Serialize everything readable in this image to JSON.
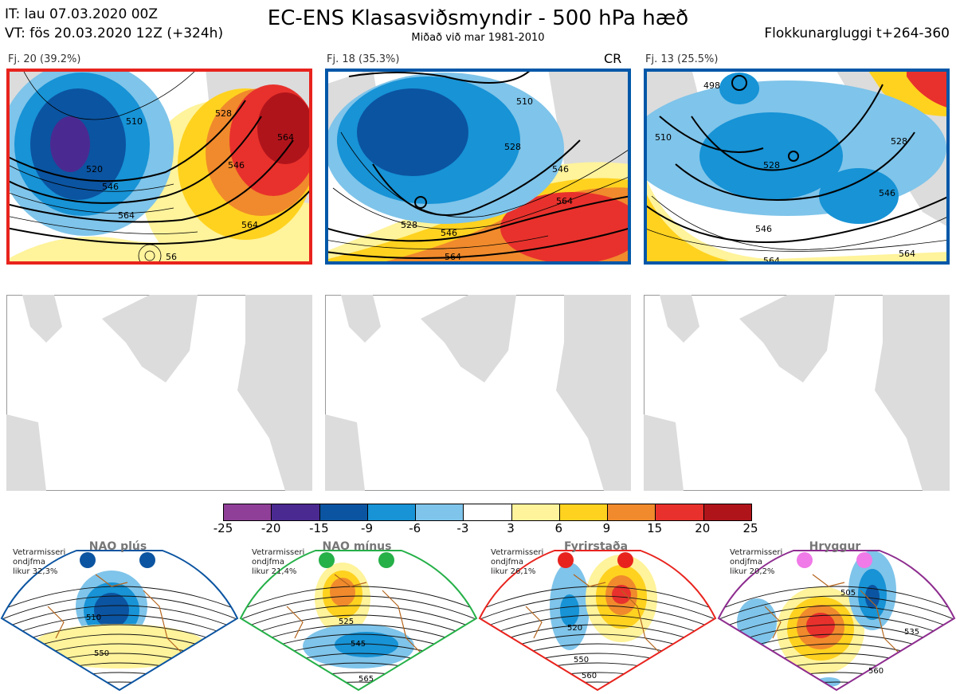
{
  "header": {
    "init_time": "IT: lau 07.03.2020 00Z",
    "valid_time": "VT: fös 20.03.2020 12Z  (+324h)",
    "title": "EC-ENS Klasasviðsmyndir - 500 hPa hæð",
    "subtitle": "Miðað við mar 1981-2010",
    "window": "Flokkunargluggi t+264-360"
  },
  "clusters": [
    {
      "label": "Fj. 20 (39.2%)",
      "border_color": "#e8231d",
      "contours": [
        "510",
        "520",
        "546",
        "564",
        "528",
        "546",
        "564",
        "564",
        "56"
      ]
    },
    {
      "label": "Fj. 18 (35.3%)",
      "border_color": "#0057a8",
      "contours": [
        "510",
        "528",
        "546",
        "564",
        "528",
        "546",
        "564"
      ],
      "tag": "CR"
    },
    {
      "label": "Fj. 13 (25.5%)",
      "border_color": "#0057a8",
      "contours": [
        "498",
        "510",
        "528",
        "546",
        "546",
        "564",
        "528",
        "564"
      ]
    }
  ],
  "colorbar": {
    "colors": [
      "#8f3f97",
      "#4a2a91",
      "#0b54a1",
      "#1793d6",
      "#7fc4ea",
      "#ffffff",
      "#fff39b",
      "#ffd21f",
      "#f08a2c",
      "#e8312c",
      "#b0141b"
    ],
    "labels": [
      "-25",
      "-20",
      "-15",
      "-9",
      "-6",
      "-3",
      "3",
      "6",
      "9",
      "15",
      "20",
      "25"
    ]
  },
  "regimes": [
    {
      "name": "NAO plús",
      "note": [
        "Vetrarmisseri",
        "ondjfma",
        "likur 32,3%"
      ],
      "dot_color": "#0b54a1",
      "fan_color": "#0b54a1",
      "contours": [
        "510",
        "550"
      ]
    },
    {
      "name": "NAO mínus",
      "note": [
        "Vetrarmisseri",
        "ondjfma",
        "likur 21,4%"
      ],
      "dot_color": "#25b048",
      "fan_color": "#25b048",
      "contours": [
        "525",
        "545",
        "565"
      ]
    },
    {
      "name": "Fyrirstaða",
      "note": [
        "Vetrarmisseri",
        "ondjfma",
        "likur 26,1%"
      ],
      "dot_color": "#e8231d",
      "fan_color": "#e8231d",
      "contours": [
        "520",
        "550",
        "560"
      ]
    },
    {
      "name": "Hryggur",
      "note": [
        "Vetrarmisseri",
        "ondjfma",
        "likur 20,2%"
      ],
      "dot_color": "#f07ae8",
      "fan_color": "#8d2c8f",
      "contours": [
        "505",
        "535",
        "560"
      ]
    }
  ]
}
